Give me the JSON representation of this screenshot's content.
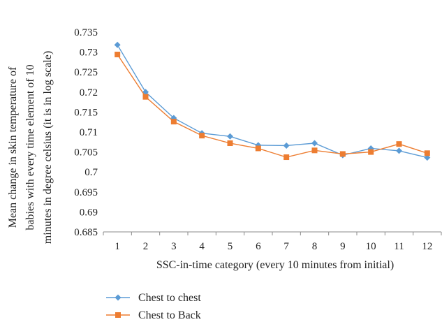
{
  "chart_data": {
    "type": "line",
    "xlabel": "SSC-in-time category (every 10 minutes from initial)",
    "ylabel_lines": [
      "Mean change in skin temperature of",
      "babies with every time element of 10",
      "minutes in degree celsius (it is in log scale)"
    ],
    "categories": [
      "1",
      "2",
      "3",
      "4",
      "5",
      "6",
      "7",
      "8",
      "9",
      "10",
      "11",
      "12"
    ],
    "ylim": [
      0.685,
      0.735
    ],
    "yticks": [
      "0.685",
      "0.69",
      "0.695",
      "0.7",
      "0.705",
      "0.71",
      "0.715",
      "0.72",
      "0.725",
      "0.73",
      "0.735"
    ],
    "grid": false,
    "legend_position": "bottom-left",
    "series": [
      {
        "name": "Chest to chest",
        "color": "#5B9BD5",
        "marker": "diamond",
        "values": [
          0.7318,
          0.72,
          0.7135,
          0.7097,
          0.7089,
          0.7067,
          0.7066,
          0.7072,
          0.7042,
          0.7059,
          0.7053,
          0.7036
        ]
      },
      {
        "name": "Chest to Back",
        "color": "#ED7D31",
        "marker": "square",
        "values": [
          0.7294,
          0.7188,
          0.7126,
          0.7091,
          0.7072,
          0.7059,
          0.7037,
          0.7054,
          0.7045,
          0.705,
          0.707,
          0.7047
        ]
      }
    ]
  }
}
